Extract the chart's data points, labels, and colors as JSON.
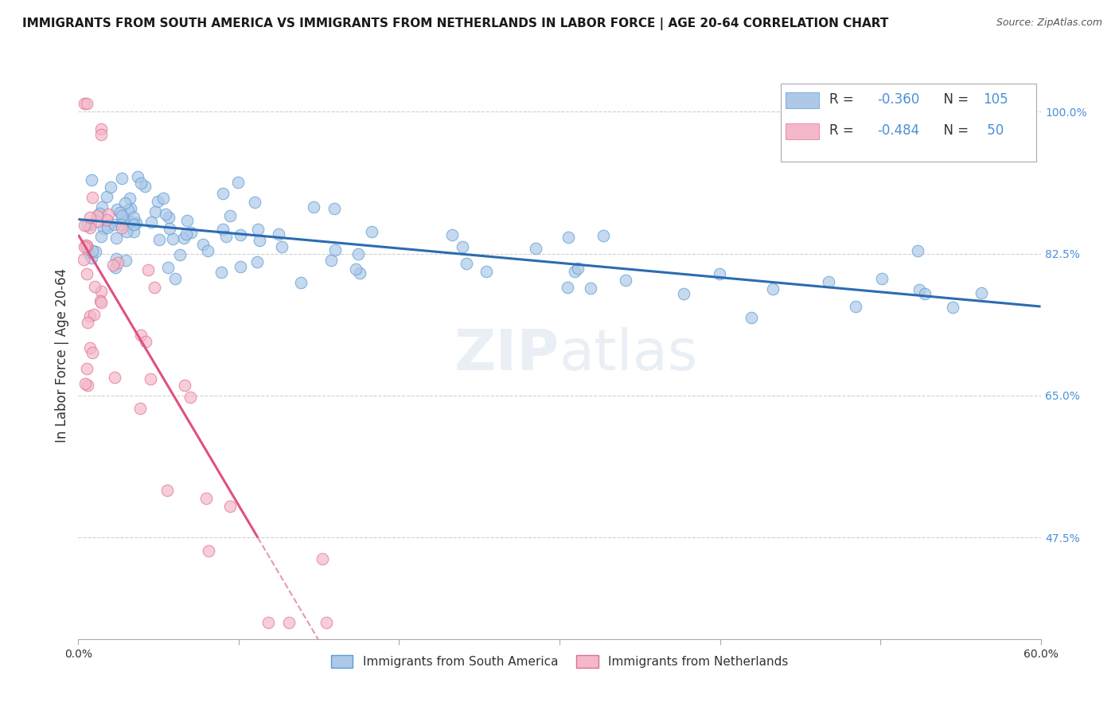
{
  "title": "IMMIGRANTS FROM SOUTH AMERICA VS IMMIGRANTS FROM NETHERLANDS IN LABOR FORCE | AGE 20-64 CORRELATION CHART",
  "source": "Source: ZipAtlas.com",
  "ylabel_label": "In Labor Force | Age 20-64",
  "legend_labels": [
    "Immigrants from South America",
    "Immigrants from Netherlands"
  ],
  "r_sa": -0.36,
  "n_sa": 105,
  "r_nl": -0.484,
  "n_nl": 50,
  "xlim": [
    0.0,
    0.6
  ],
  "ylim": [
    0.35,
    1.05
  ],
  "yticks": [
    0.475,
    0.65,
    0.825,
    1.0
  ],
  "xticks_minor": [
    0.0,
    0.1,
    0.2,
    0.3,
    0.4,
    0.5,
    0.6
  ],
  "xticks_labeled": [
    0.0,
    0.6
  ],
  "blue_scatter_color": "#aec9e8",
  "blue_scatter_edge": "#5b9bd5",
  "pink_scatter_color": "#f4b8c8",
  "pink_scatter_edge": "#e07090",
  "blue_line_color": "#2b6cb0",
  "pink_line_color": "#e05080",
  "grid_color": "#d0d0d0",
  "background_color": "#ffffff",
  "text_color": "#333333",
  "right_axis_color": "#4a90d9",
  "watermark_color": "#c8d8e8",
  "watermark_alpha": 0.4,
  "title_fontsize": 11,
  "source_fontsize": 9,
  "tick_fontsize": 10,
  "legend_fontsize": 11
}
